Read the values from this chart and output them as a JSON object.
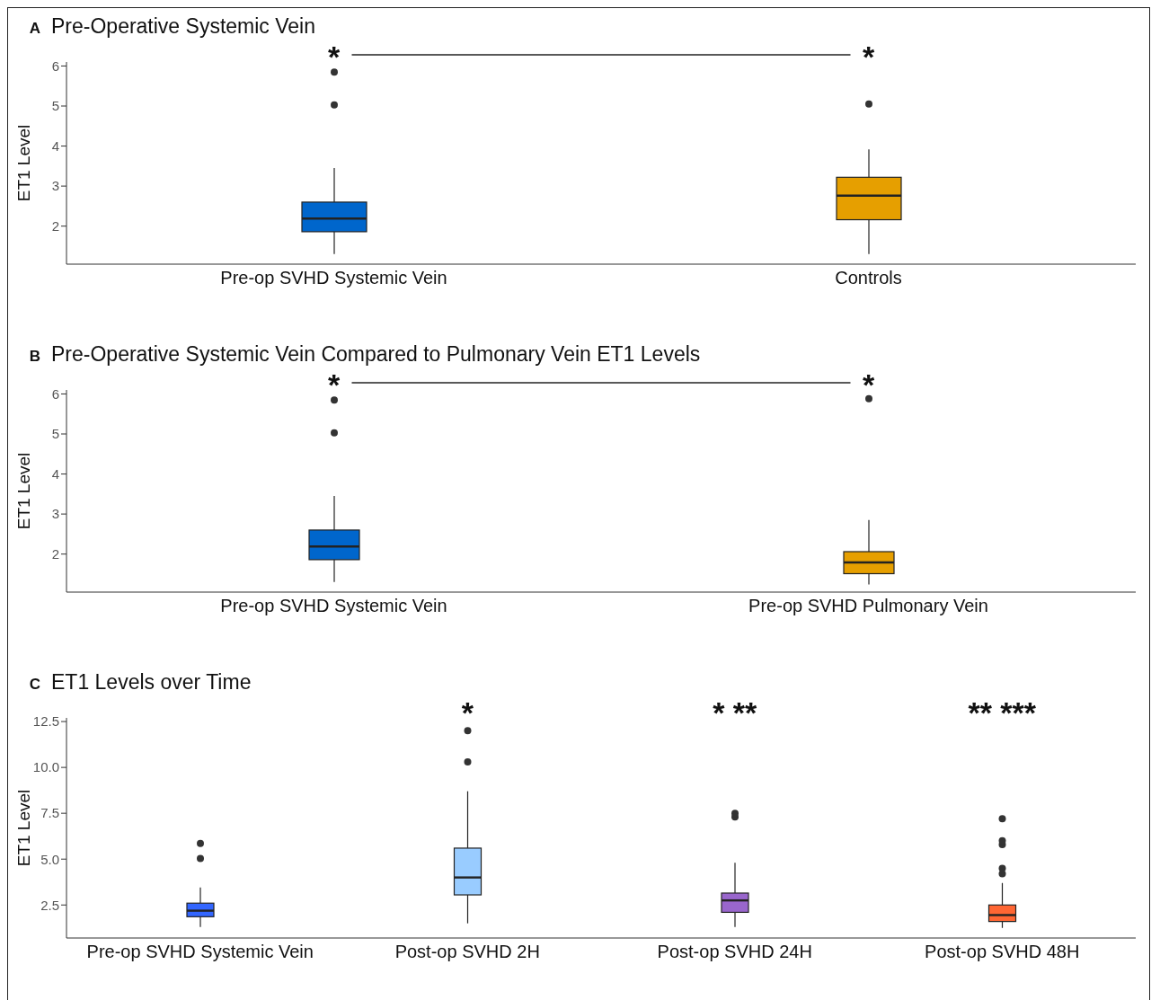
{
  "chart_data": [
    {
      "type": "box",
      "title": "Pre-Operative Systemic Vein",
      "ylabel": "ET1 Level",
      "categories": [
        "Pre-op SVHD Systemic Vein",
        "Controls"
      ],
      "colors": [
        "#0066cc",
        "#e69f00"
      ],
      "boxes": [
        {
          "low": 1.3,
          "q1": 1.86,
          "median": 2.19,
          "q3": 2.6,
          "high": 3.45,
          "outliers": [
            5.03,
            5.85
          ]
        },
        {
          "low": 1.3,
          "q1": 2.16,
          "median": 2.76,
          "q3": 3.22,
          "high": 3.92,
          "outliers": [
            5.05
          ]
        }
      ],
      "ylim": [
        1.05,
        6.1
      ],
      "yticks": [
        2,
        3,
        4,
        5,
        6
      ],
      "annotations": [
        "A",
        "*",
        "*"
      ]
    },
    {
      "type": "box",
      "title": "Pre-Operative Systemic Vein Compared to Pulmonary Vein ET1 Levels",
      "ylabel": "ET1 Level",
      "categories": [
        "Pre-op SVHD Systemic Vein",
        "Pre-op SVHD Pulmonary Vein"
      ],
      "colors": [
        "#0066cc",
        "#e69f00"
      ],
      "boxes": [
        {
          "low": 1.3,
          "q1": 1.86,
          "median": 2.19,
          "q3": 2.6,
          "high": 3.45,
          "outliers": [
            5.03,
            5.85
          ]
        },
        {
          "low": 1.24,
          "q1": 1.51,
          "median": 1.79,
          "q3": 2.06,
          "high": 2.85,
          "outliers": [
            5.88
          ]
        }
      ],
      "ylim": [
        1.05,
        6.1
      ],
      "yticks": [
        2,
        3,
        4,
        5,
        6
      ],
      "annotations": [
        "B",
        "*",
        "*"
      ]
    },
    {
      "type": "box",
      "title": "ET1 Levels over Time",
      "ylabel": "ET1 Level",
      "categories": [
        "Pre-op SVHD Systemic Vein",
        "Post-op SVHD 2H",
        "Post-op SVHD 24H",
        "Post-op SVHD 48H"
      ],
      "colors": [
        "#3366ff",
        "#99ccff",
        "#9966cc",
        "#ff6633"
      ],
      "boxes": [
        {
          "low": 1.3,
          "q1": 1.86,
          "median": 2.19,
          "q3": 2.6,
          "high": 3.45,
          "outliers": [
            5.03,
            5.85
          ]
        },
        {
          "low": 1.5,
          "q1": 3.05,
          "median": 4.0,
          "q3": 5.6,
          "high": 8.7,
          "outliers": [
            10.3,
            12.0
          ]
        },
        {
          "low": 1.3,
          "q1": 2.1,
          "median": 2.75,
          "q3": 3.15,
          "high": 4.8,
          "outliers": [
            7.3,
            7.5
          ]
        },
        {
          "low": 1.25,
          "q1": 1.6,
          "median": 1.95,
          "q3": 2.5,
          "high": 3.7,
          "outliers": [
            4.2,
            4.5,
            5.8,
            6.0,
            7.2
          ]
        }
      ],
      "ylim": [
        0.7,
        12.7
      ],
      "yticks": [
        {
          "value": 2.5,
          "label": "2.5"
        },
        {
          "value": 5,
          "label": "5.0"
        },
        {
          "value": 7.5,
          "label": "7.5"
        },
        {
          "value": 10,
          "label": "10.0"
        },
        {
          "value": 12.5,
          "label": "12.5"
        }
      ],
      "annotations": [
        "C",
        "*",
        "* **",
        "** ***"
      ]
    }
  ]
}
